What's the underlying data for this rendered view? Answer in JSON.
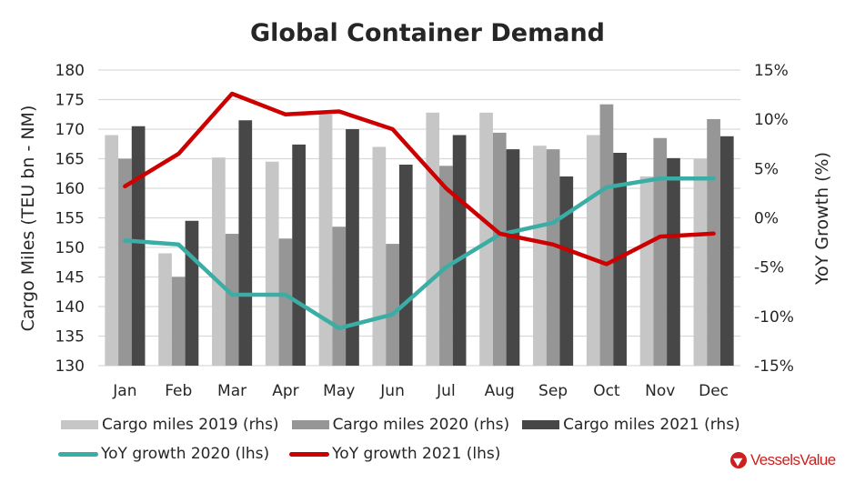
{
  "chart_data": {
    "type": "bar+line",
    "title": "Global Container Demand",
    "categories": [
      "Jan",
      "Feb",
      "Mar",
      "Apr",
      "May",
      "Jun",
      "Jul",
      "Aug",
      "Sep",
      "Oct",
      "Nov",
      "Dec"
    ],
    "y_left": {
      "label": "Cargo Miles (TEU bn - NM)",
      "range": [
        130,
        180
      ],
      "ticks": [
        "180",
        "175",
        "170",
        "165",
        "160",
        "155",
        "150",
        "145",
        "140",
        "135",
        "130"
      ]
    },
    "y_right": {
      "label": "YoY Growth (%)",
      "range": [
        -15,
        15
      ],
      "ticks": [
        "15%",
        "10%",
        "5%",
        "0%",
        "-5%",
        "-10%",
        "-15%"
      ]
    },
    "grid": true,
    "legend_position": "bottom",
    "bar_series": [
      {
        "name": "Cargo miles 2019 (rhs)",
        "color": "#c6c6c6",
        "values": [
          169.0,
          149.0,
          165.2,
          164.5,
          172.5,
          167.0,
          172.8,
          172.8,
          167.2,
          169.0,
          162.0,
          165.0
        ]
      },
      {
        "name": "Cargo miles 2020 (rhs)",
        "color": "#969696",
        "values": [
          165.0,
          145.0,
          152.3,
          151.5,
          153.5,
          150.6,
          163.8,
          169.4,
          166.6,
          174.2,
          168.5,
          171.7
        ]
      },
      {
        "name": "Cargo miles 2021 (rhs)",
        "color": "#474747",
        "values": [
          170.5,
          154.5,
          171.5,
          167.4,
          170.0,
          164.0,
          169.0,
          166.6,
          162.0,
          166.0,
          165.1,
          168.8
        ]
      }
    ],
    "line_series": [
      {
        "name": "YoY growth 2020 (lhs)",
        "color": "#3aada5",
        "values": [
          -2.3,
          -2.7,
          -7.8,
          -7.8,
          -11.2,
          -9.8,
          -5.0,
          -1.7,
          -0.5,
          3.1,
          4.0,
          4.0
        ]
      },
      {
        "name": "YoY growth 2021 (lhs)",
        "color": "#cc0000",
        "values": [
          3.2,
          6.5,
          12.6,
          10.5,
          10.8,
          9.0,
          3.0,
          -1.6,
          -2.7,
          -4.7,
          -1.9,
          -1.6
        ]
      }
    ]
  },
  "branding": {
    "logo_text": "VesselsValue",
    "logo_color": "#cc1f1f"
  }
}
